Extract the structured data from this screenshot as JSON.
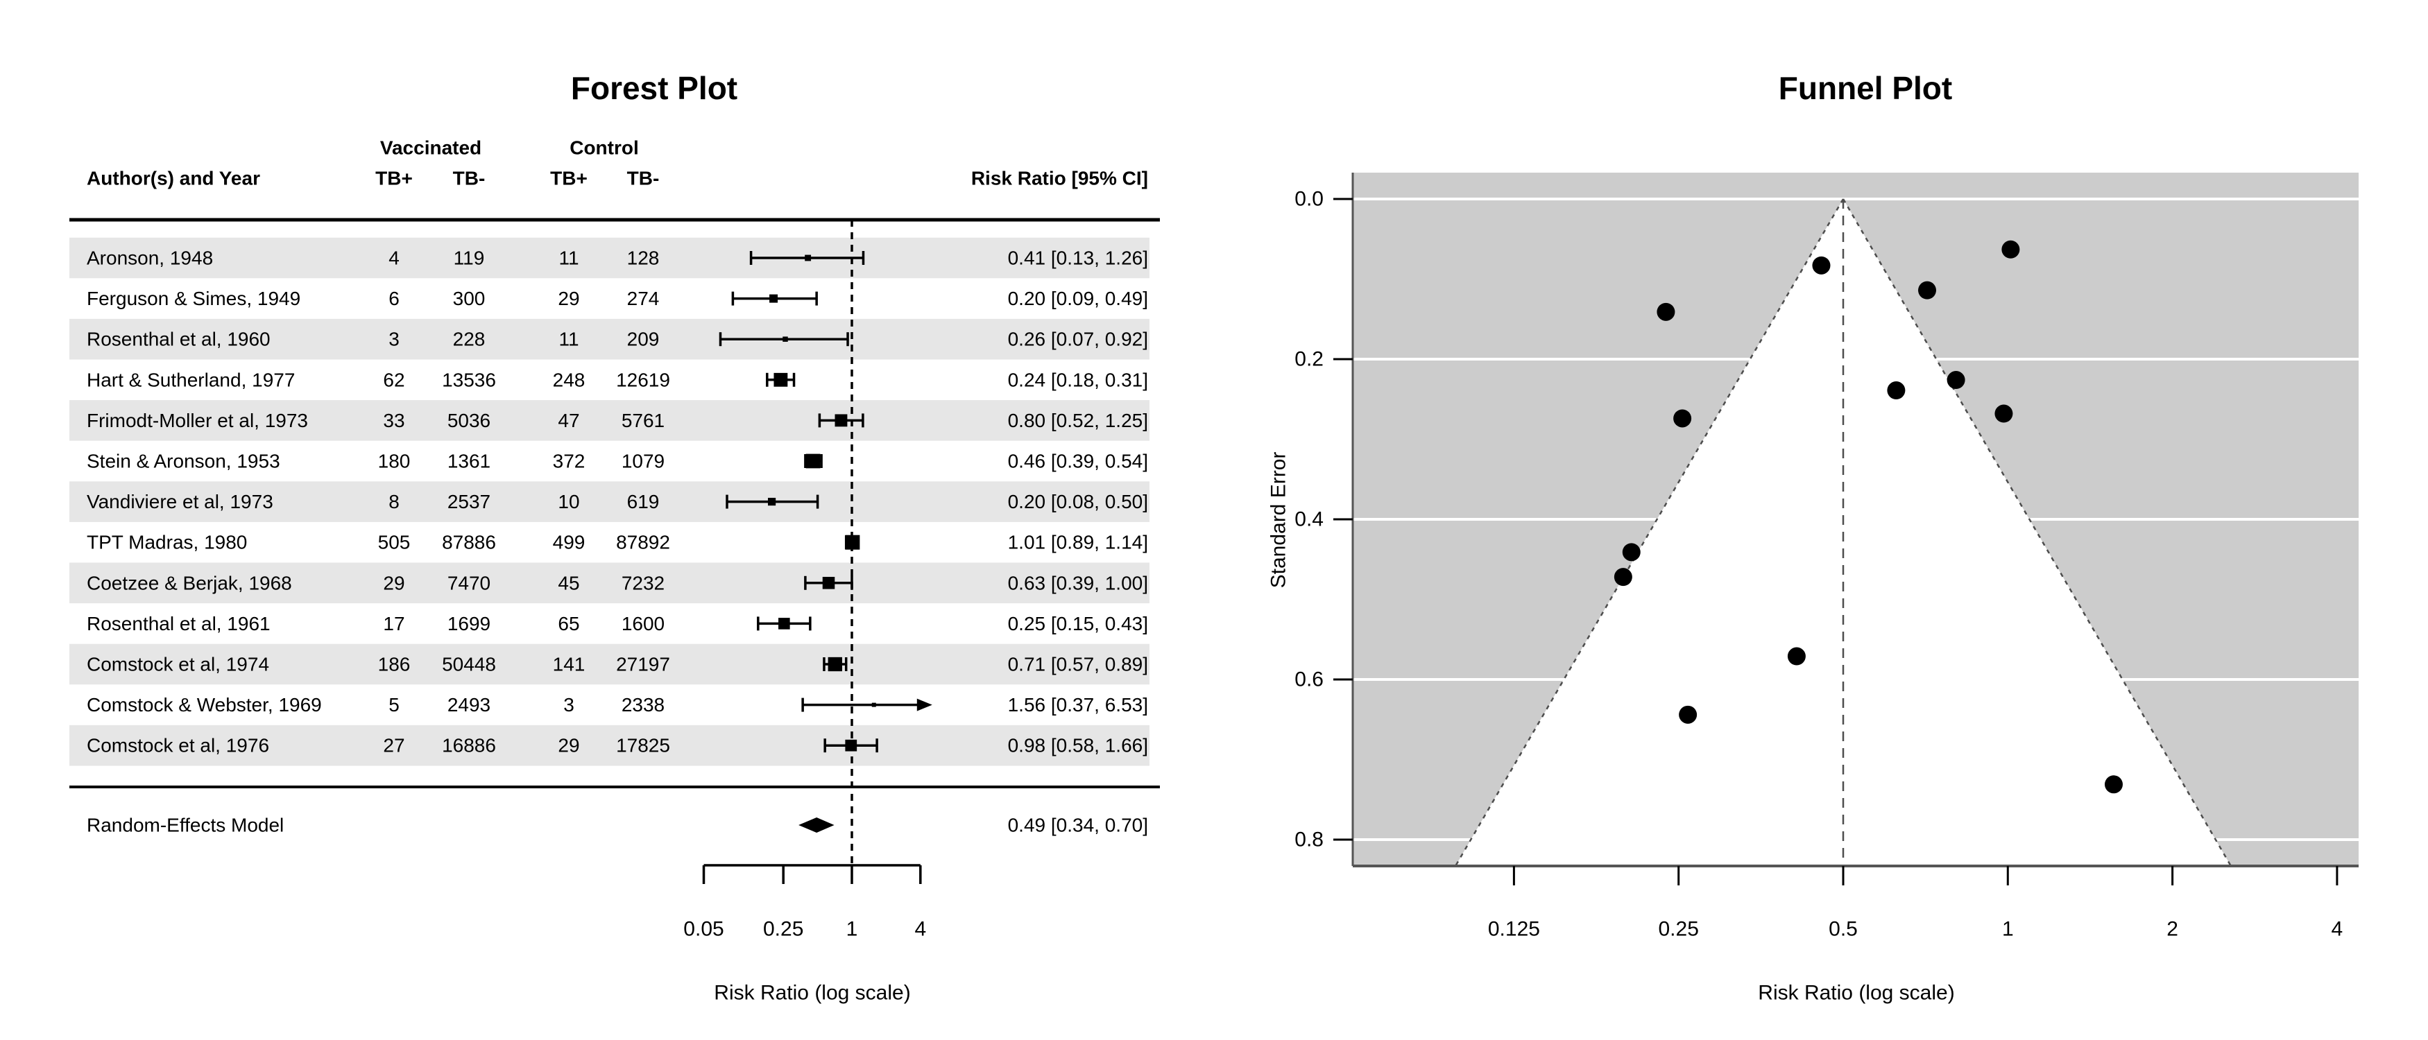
{
  "colors": {
    "row_band": "#e6e6e6",
    "funnel_background": "#cccccc",
    "funnel_region_fill": "#ffffff",
    "gridline": "#ffffff",
    "guide_line": "#4d4d4d",
    "axis_line": "#555555",
    "marker": "#000000"
  },
  "chart_data": [
    {
      "type": "table",
      "title": "Forest Plot",
      "header": {
        "author": "Author(s) and Year",
        "group1": "Vaccinated",
        "group2": "Control",
        "tb_pos": "TB+",
        "tb_neg": "TB-",
        "estimate": "Risk Ratio [95% CI]"
      },
      "xlabel": "Risk Ratio (log scale)",
      "x_scale": "log",
      "x_ticks": [
        0.05,
        0.25,
        1,
        4
      ],
      "x_tick_labels": [
        "0.05",
        "0.25",
        "1",
        "4"
      ],
      "reference_line": 1,
      "clip_max": 4,
      "rows": [
        {
          "author": "Aronson, 1948",
          "v_pos": "4",
          "v_neg": "119",
          "c_pos": "11",
          "c_neg": "128",
          "rr": 0.411,
          "ci_lo": 0.13,
          "ci_hi": 1.26,
          "se": 0.571,
          "estimate_label": "0.41 [0.13, 1.26]"
        },
        {
          "author": "Ferguson & Simes, 1949",
          "v_pos": "6",
          "v_neg": "300",
          "c_pos": "29",
          "c_neg": "274",
          "rr": 0.205,
          "ci_lo": 0.09,
          "ci_hi": 0.49,
          "se": 0.441,
          "estimate_label": "0.20 [0.09, 0.49]"
        },
        {
          "author": "Rosenthal et al, 1960",
          "v_pos": "3",
          "v_neg": "228",
          "c_pos": "11",
          "c_neg": "209",
          "rr": 0.26,
          "ci_lo": 0.07,
          "ci_hi": 0.92,
          "se": 0.644,
          "estimate_label": "0.26 [0.07, 0.92]"
        },
        {
          "author": "Hart & Sutherland, 1977",
          "v_pos": "62",
          "v_neg": "13536",
          "c_pos": "248",
          "c_neg": "12619",
          "rr": 0.237,
          "ci_lo": 0.18,
          "ci_hi": 0.31,
          "se": 0.141,
          "estimate_label": "0.24 [0.18, 0.31]"
        },
        {
          "author": "Frimodt-Moller et al, 1973",
          "v_pos": "33",
          "v_neg": "5036",
          "c_pos": "47",
          "c_neg": "5761",
          "rr": 0.804,
          "ci_lo": 0.52,
          "ci_hi": 1.25,
          "se": 0.226,
          "estimate_label": "0.80 [0.52, 1.25]"
        },
        {
          "author": "Stein & Aronson, 1953",
          "v_pos": "180",
          "v_neg": "1361",
          "c_pos": "372",
          "c_neg": "1079",
          "rr": 0.456,
          "ci_lo": 0.39,
          "ci_hi": 0.54,
          "se": 0.083,
          "estimate_label": "0.46 [0.39, 0.54]"
        },
        {
          "author": "Vandiviere et al, 1973",
          "v_pos": "8",
          "v_neg": "2537",
          "c_pos": "10",
          "c_neg": "619",
          "rr": 0.198,
          "ci_lo": 0.08,
          "ci_hi": 0.5,
          "se": 0.472,
          "estimate_label": "0.20 [0.08, 0.50]"
        },
        {
          "author": "TPT Madras, 1980",
          "v_pos": "505",
          "v_neg": "87886",
          "c_pos": "499",
          "c_neg": "87892",
          "rr": 1.012,
          "ci_lo": 0.89,
          "ci_hi": 1.14,
          "se": 0.063,
          "estimate_label": "1.01 [0.89, 1.14]"
        },
        {
          "author": "Coetzee & Berjak, 1968",
          "v_pos": "29",
          "v_neg": "7470",
          "c_pos": "45",
          "c_neg": "7232",
          "rr": 0.625,
          "ci_lo": 0.39,
          "ci_hi": 1.0,
          "se": 0.239,
          "estimate_label": "0.63 [0.39, 1.00]"
        },
        {
          "author": "Rosenthal et al, 1961",
          "v_pos": "17",
          "v_neg": "1699",
          "c_pos": "65",
          "c_neg": "1600",
          "rr": 0.254,
          "ci_lo": 0.15,
          "ci_hi": 0.43,
          "se": 0.274,
          "estimate_label": "0.25 [0.15, 0.43]"
        },
        {
          "author": "Comstock et al, 1974",
          "v_pos": "186",
          "v_neg": "50448",
          "c_pos": "141",
          "c_neg": "27197",
          "rr": 0.712,
          "ci_lo": 0.57,
          "ci_hi": 0.89,
          "se": 0.114,
          "estimate_label": "0.71 [0.57, 0.89]"
        },
        {
          "author": "Comstock & Webster, 1969",
          "v_pos": "5",
          "v_neg": "2493",
          "c_pos": "3",
          "c_neg": "2338",
          "rr": 1.562,
          "ci_lo": 0.37,
          "ci_hi": 6.53,
          "se": 0.731,
          "estimate_label": "1.56 [0.37, 6.53]"
        },
        {
          "author": "Comstock et al, 1976",
          "v_pos": "27",
          "v_neg": "16886",
          "c_pos": "29",
          "c_neg": "17825",
          "rr": 0.983,
          "ci_lo": 0.58,
          "ci_hi": 1.66,
          "se": 0.268,
          "estimate_label": "0.98 [0.58, 1.66]"
        }
      ],
      "summary": {
        "label": "Random-Effects Model",
        "rr": 0.49,
        "ci_lo": 0.34,
        "ci_hi": 0.7,
        "estimate_label": "0.49 [0.34, 0.70]"
      }
    },
    {
      "type": "scatter",
      "title": "Funnel Plot",
      "xlabel": "Risk Ratio (log scale)",
      "ylabel": "Standard Error",
      "x_scale": "log",
      "x_ticks": [
        0.125,
        0.25,
        0.5,
        1,
        2,
        4
      ],
      "x_tick_labels": [
        "0.125",
        "0.25",
        "0.5",
        "1",
        "2",
        "4"
      ],
      "y_ticks": [
        0.0,
        0.2,
        0.4,
        0.6,
        0.8
      ],
      "y_tick_labels": [
        "0.0",
        "0.2",
        "0.4",
        "0.6",
        "0.8"
      ],
      "y_range": [
        0,
        0.833
      ],
      "y_inverted": true,
      "center_estimate": 0.5,
      "ci_z": 1.96,
      "points": [
        {
          "study": "Aronson, 1948",
          "rr": 0.411,
          "se": 0.571
        },
        {
          "study": "Ferguson & Simes, 1949",
          "rr": 0.205,
          "se": 0.441
        },
        {
          "study": "Rosenthal et al, 1960",
          "rr": 0.26,
          "se": 0.644
        },
        {
          "study": "Hart & Sutherland, 1977",
          "rr": 0.237,
          "se": 0.141
        },
        {
          "study": "Frimodt-Moller et al, 1973",
          "rr": 0.804,
          "se": 0.226
        },
        {
          "study": "Stein & Aronson, 1953",
          "rr": 0.456,
          "se": 0.083
        },
        {
          "study": "Vandiviere et al, 1973",
          "rr": 0.198,
          "se": 0.472
        },
        {
          "study": "TPT Madras, 1980",
          "rr": 1.012,
          "se": 0.063
        },
        {
          "study": "Coetzee & Berjak, 1968",
          "rr": 0.625,
          "se": 0.239
        },
        {
          "study": "Rosenthal et al, 1961",
          "rr": 0.254,
          "se": 0.274
        },
        {
          "study": "Comstock et al, 1974",
          "rr": 0.712,
          "se": 0.114
        },
        {
          "study": "Comstock & Webster, 1969",
          "rr": 1.562,
          "se": 0.731
        },
        {
          "study": "Comstock et al, 1976",
          "rr": 0.983,
          "se": 0.268
        }
      ]
    }
  ]
}
